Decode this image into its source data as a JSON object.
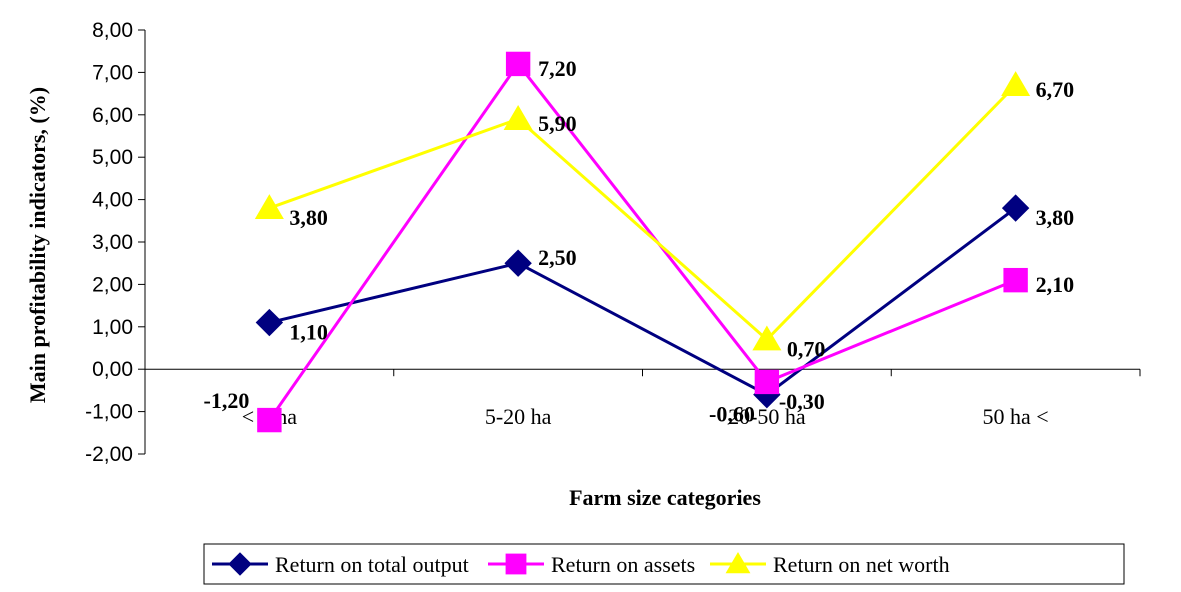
{
  "chart_data": {
    "type": "line",
    "title": "",
    "xlabel": "Farm size categories",
    "ylabel": "Main profitability indicators, (%)",
    "categories": [
      "< 5 ha",
      "5-20 ha",
      "20-50 ha",
      "50 ha <"
    ],
    "ylim": [
      -2,
      8
    ],
    "ytick_step": 1,
    "ytick_labels": [
      "-2,00",
      "-1,00",
      "0,00",
      "1,00",
      "2,00",
      "3,00",
      "4,00",
      "5,00",
      "6,00",
      "7,00",
      "8,00"
    ],
    "grid": false,
    "legend_position": "bottom",
    "series": [
      {
        "name": "Return on total output",
        "marker": "diamond",
        "color": "#000080",
        "values": [
          1.1,
          2.5,
          -0.6,
          3.8
        ],
        "labels": [
          "1,10",
          "2,50",
          "-0,60",
          "3,80"
        ]
      },
      {
        "name": "Return on assets",
        "marker": "square",
        "color": "#FF00FF",
        "values": [
          -1.2,
          7.2,
          -0.3,
          2.1
        ],
        "labels": [
          "-1,20",
          "7,20",
          "-0,30",
          "2,10"
        ]
      },
      {
        "name": "Return on net worth",
        "marker": "triangle",
        "color": "#FFFF00",
        "values": [
          3.8,
          5.9,
          0.7,
          6.7
        ],
        "labels": [
          "3,80",
          "5,90",
          "0,70",
          "6,70"
        ]
      }
    ]
  }
}
